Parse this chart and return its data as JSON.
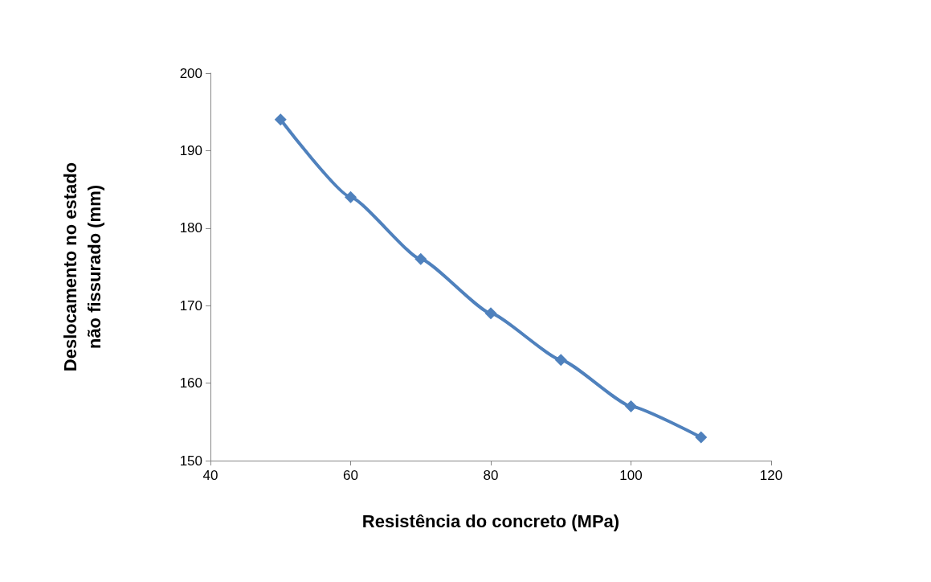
{
  "chart_data": {
    "type": "line",
    "xlabel": "Resistência do concreto (MPa)",
    "ylabel": "Deslocamento no estado\nnão fissurado (mm)",
    "x": [
      50,
      60,
      70,
      80,
      90,
      100,
      110
    ],
    "series": [
      {
        "color": "#4f81bd",
        "values": [
          194,
          184,
          176,
          169,
          163,
          157,
          153
        ]
      }
    ],
    "xlim": [
      40,
      120
    ],
    "xticks": [
      40,
      60,
      80,
      100,
      120
    ],
    "ylim": [
      150,
      200
    ],
    "yticks": [
      150,
      160,
      170,
      180,
      190,
      200
    ],
    "grid": false,
    "marker": "diamond",
    "line_style": "solid"
  }
}
